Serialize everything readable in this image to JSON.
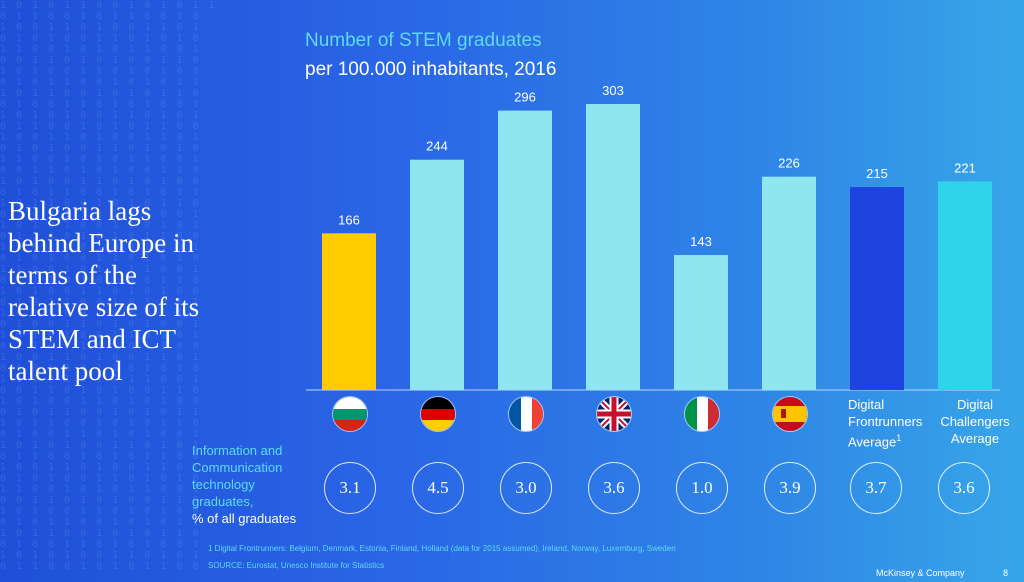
{
  "headline": "Bulgaria lags behind Europe in terms of the relative size of its STEM and ICT talent pool",
  "colors": {
    "bulgaria": "#ffcc00",
    "country": "#8fe6f0",
    "frontrunners": "#1e44e0",
    "challengers": "#2fd4ea",
    "accent": "#5fd9ee"
  },
  "chart_data": {
    "type": "bar",
    "title": "Number of STEM graduates",
    "subtitle": "per 100.000 inhabitants, 2016",
    "categories": [
      "Bulgaria",
      "Germany",
      "France",
      "United Kingdom",
      "Italy",
      "Spain",
      "Digital Frontrunners Average",
      "Digital Challengers Average"
    ],
    "values": [
      166,
      244,
      296,
      303,
      143,
      226,
      215,
      221
    ],
    "ylim": [
      0,
      303
    ],
    "xlabel": "",
    "ylabel": "",
    "grid": false,
    "legend": "none",
    "secondary_metric": {
      "label": "Information and Communication technology graduates, % of all graduates",
      "values": [
        "3.1",
        "4.5",
        "3.0",
        "3.6",
        "1.0",
        "3.9",
        "3.7",
        "3.6"
      ]
    }
  },
  "labels": {
    "frontrunners": {
      "line1": "Digital",
      "line2": "Frontrunners",
      "line3": "Average",
      "sup": "1"
    },
    "challengers": {
      "line1": "Digital",
      "line2": "Challengers",
      "line3": "Average"
    }
  },
  "ict": {
    "line1": "Information and",
    "line2": "Communication",
    "line3": "technology",
    "line4": "graduates,",
    "line5": "% of all graduates"
  },
  "flags": [
    "bulgaria-flag",
    "germany-flag",
    "france-flag",
    "uk-flag",
    "italy-flag",
    "spain-flag"
  ],
  "footnote": "1 Digital Frontrunners: Belgium, Denmark, Estonia, Finland, Holland (data for 2015 assumed), Ireland, Norway, Luxemburg, Sweden",
  "source": "SOURCE: Eurostat, Unesco Institute for Statistics",
  "brand": "McKinsey & Company",
  "page_number": "8"
}
